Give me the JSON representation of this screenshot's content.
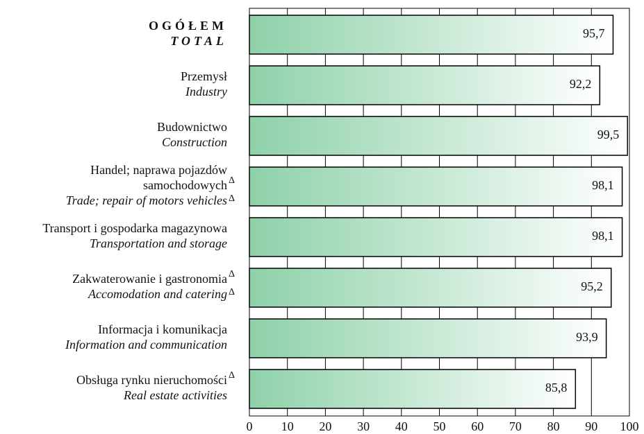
{
  "chart_data": {
    "type": "bar",
    "orientation": "horizontal",
    "categories": [
      {
        "pl": [
          "OGÓŁEM"
        ],
        "en": "TOTAL",
        "bold": true
      },
      {
        "pl": [
          "Przemysł"
        ],
        "en": "Industry"
      },
      {
        "pl": [
          "Budownictwo"
        ],
        "en": "Construction"
      },
      {
        "pl": [
          "Handel; naprawa pojazdów",
          "samochodowych"
        ],
        "pl_note": "Δ",
        "en": "Trade; repair of motors vehicles",
        "en_note": "Δ"
      },
      {
        "pl": [
          "Transport i gospodarka magazynowa"
        ],
        "en": "Transportation and storage"
      },
      {
        "pl": [
          "Zakwaterowanie i gastronomia"
        ],
        "pl_note": "Δ",
        "en": "Accomodation and catering",
        "en_note": "Δ"
      },
      {
        "pl": [
          "Informacja i komunikacja"
        ],
        "en": "Information and communication"
      },
      {
        "pl": [
          "Obsługa rynku nieruchomości"
        ],
        "pl_note": "Δ",
        "en": "Real estate activities"
      }
    ],
    "values": [
      95.7,
      92.2,
      99.5,
      98.1,
      98.1,
      95.2,
      93.9,
      85.8
    ],
    "value_labels": [
      "95,7",
      "92,2",
      "99,5",
      "98,1",
      "98,1",
      "95,2",
      "93,9",
      "85,8"
    ],
    "color": "#8ed1a9",
    "xlim": [
      0,
      100
    ],
    "xticks": [
      0,
      10,
      20,
      30,
      40,
      50,
      60,
      70,
      80,
      90,
      100
    ],
    "grid": true
  }
}
